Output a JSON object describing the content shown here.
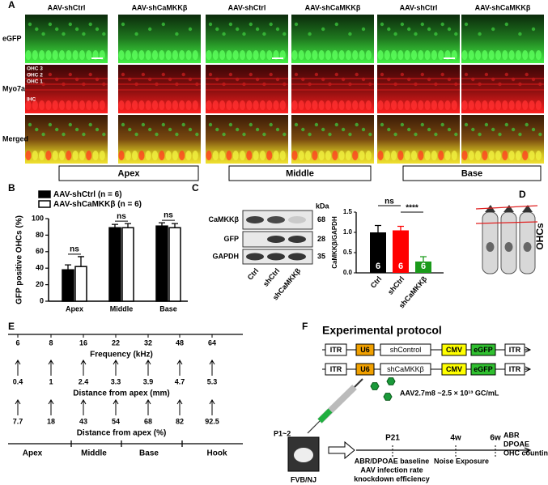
{
  "panel_labels": [
    "A",
    "B",
    "C",
    "D",
    "E",
    "F"
  ],
  "panel_a": {
    "column_headers": [
      "AAV-shCtrl",
      "AAV-shCaMKKβ",
      "AAV-shCtrl",
      "AAV-shCaMKKβ",
      "AAV-shCtrl",
      "AAV-shCaMKKβ"
    ],
    "row_labels": [
      "eGFP",
      "Myo7a",
      "Merged"
    ],
    "cell_row_labels": [
      "OHC 3",
      "OHC 2",
      "OHC 1",
      "IHC"
    ],
    "regions": [
      "Apex",
      "Middle",
      "Base"
    ]
  },
  "panel_b": {
    "chart_data": {
      "type": "bar",
      "y_label": "GFP positive OHCs (%)",
      "categories": [
        "Apex",
        "Middle",
        "Base"
      ],
      "series": [
        {
          "name": "AAV-shCtrl (n = 6)",
          "color": "#000000",
          "values": [
            38,
            89,
            91
          ],
          "errors": [
            6,
            4,
            4
          ]
        },
        {
          "name": "AAV-shCaMKKβ (n = 6)",
          "color": "#ffffff",
          "values": [
            42,
            89,
            89
          ],
          "errors": [
            12,
            5,
            5
          ]
        }
      ],
      "annotations": [
        "ns",
        "ns",
        "ns"
      ],
      "ylim": [
        0,
        100
      ],
      "yticks": [
        0,
        20,
        40,
        60,
        80,
        100
      ]
    }
  },
  "panel_c": {
    "blot": {
      "kda_label": "kDa",
      "bands": [
        "CaMKKβ",
        "GFP",
        "GAPDH"
      ],
      "kda": [
        68,
        28,
        35
      ],
      "lanes": [
        "Ctrl",
        "shCtrl",
        "shCaMKKβ"
      ]
    },
    "chart_data": {
      "type": "bar",
      "y_label": "CaMKKβ/GAPDH",
      "categories": [
        "Ctrl",
        "shCtrl",
        "shCaMKKβ"
      ],
      "values": [
        1.0,
        1.05,
        0.28
      ],
      "errors": [
        0.17,
        0.1,
        0.12
      ],
      "colors": [
        "#000000",
        "#ff0000",
        "#1a9a1a"
      ],
      "n_labels": [
        "6",
        "6",
        "6"
      ],
      "annotations": [
        "ns",
        "****"
      ],
      "ylim": [
        0,
        1.5
      ],
      "yticks": [
        {
          "value": 0,
          "label": "0.0"
        },
        0.5,
        {
          "value": 1,
          "label": "1.0"
        },
        1.5
      ]
    }
  },
  "panel_d": {
    "label": "OHCs"
  },
  "panel_e": {
    "frequency": {
      "label": "Frequency (kHz)",
      "values": [
        6,
        8,
        16,
        22,
        32,
        48,
        64
      ]
    },
    "distance_mm": {
      "label": "Distance from apex (mm)",
      "values": [
        0.4,
        1,
        2.4,
        3.3,
        3.9,
        4.7,
        5.3
      ]
    },
    "distance_percent": {
      "label": "Distance from apex (%)",
      "values": [
        7.7,
        18,
        43,
        54,
        68,
        82,
        92.5
      ]
    },
    "regions": [
      "Apex",
      "Middle",
      "Base",
      "Hook"
    ]
  },
  "panel_f": {
    "title": "Experimental protocol",
    "constructs": [
      [
        "ITR",
        "U6",
        "shControl",
        "CMV",
        "eGFP",
        "ITR"
      ],
      [
        "ITR",
        "U6",
        "shCaMKKβ",
        "CMV",
        "eGFP",
        "ITR"
      ]
    ],
    "virus": "AAV2.7m8 ~2.5 × 10¹³ GC/mL",
    "age": "P1~2",
    "strain": "FVB/NJ",
    "timeline": [
      "P21",
      "4w",
      "6w"
    ],
    "events": [
      [
        "ABR/DPOAE baseline",
        "AAV infection rate",
        "knockdown efficiency"
      ],
      [
        "Noise Exposure"
      ],
      [
        "ABR",
        "DPOAE",
        "OHC counting"
      ]
    ]
  }
}
